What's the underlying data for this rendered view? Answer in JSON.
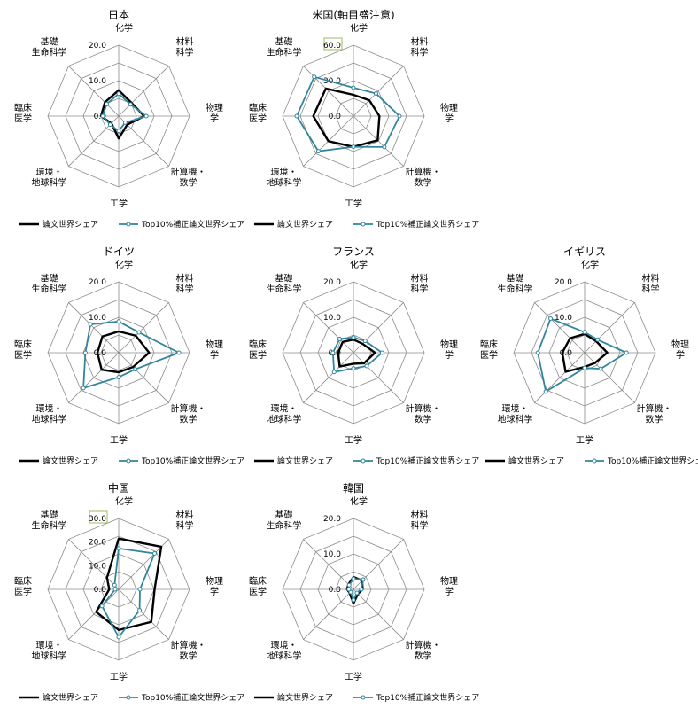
{
  "colors": {
    "share": "#000000",
    "top10": "#31859c",
    "grid": "#8c8c8c",
    "tick_box": "#9bbb59"
  },
  "legend": {
    "share_label": "論文世界シェア",
    "top10_label": "Top10%補正論文世界シェア"
  },
  "axes": [
    [
      "化学"
    ],
    [
      "材料",
      "科学"
    ],
    [
      "物理",
      "学"
    ],
    [
      "計算機・",
      "数学"
    ],
    [
      "工学"
    ],
    [
      "環境・",
      "地球科学"
    ],
    [
      "臨床",
      "医学"
    ],
    [
      "基礎",
      "生命科学"
    ]
  ],
  "chart_data": [
    {
      "type": "radar",
      "title": "日本",
      "rmax": 20,
      "ticks": [
        "20.0",
        "10.0",
        "0.0"
      ],
      "tick_values": [
        20,
        10,
        0
      ],
      "boxed_tick": "",
      "series": [
        {
          "name": "論文世界シェア",
          "values": [
            7.3,
            5.2,
            7.2,
            3.4,
            6.3,
            2.9,
            5.0,
            5.5
          ]
        },
        {
          "name": "Top10%補正論文世界シェア",
          "values": [
            6.3,
            4.7,
            7.8,
            2.6,
            4.2,
            3.4,
            4.5,
            4.8
          ]
        }
      ]
    },
    {
      "type": "radar",
      "title": "米国(軸目盛注意)",
      "rmax": 60,
      "ticks": [
        "60.0",
        "30.0",
        "0.0"
      ],
      "tick_values": [
        60,
        30,
        0
      ],
      "boxed_tick": "60.0",
      "series": [
        {
          "name": "論文世界シェア",
          "values": [
            18,
            19,
            22,
            29,
            26,
            30,
            34,
            33
          ]
        },
        {
          "name": "Top10%補正論文世界シェア",
          "values": [
            24,
            27,
            39,
            37,
            26,
            42,
            48,
            47
          ]
        }
      ]
    },
    {
      "type": "radar",
      "title": "ドイツ",
      "rmax": 20,
      "ticks": [
        "20.0",
        "10.0",
        "0.0"
      ],
      "tick_values": [
        20,
        10,
        0
      ],
      "boxed_tick": "",
      "series": [
        {
          "name": "論文世界シェア",
          "values": [
            6.0,
            6.8,
            8.6,
            5.7,
            5.5,
            6.8,
            6.0,
            6.5
          ]
        },
        {
          "name": "Top10%補正論文世界シェア",
          "values": [
            8.8,
            8.1,
            17.0,
            6.6,
            6.9,
            14.1,
            9.4,
            11.3
          ]
        }
      ]
    },
    {
      "type": "radar",
      "title": "フランス",
      "rmax": 20,
      "ticks": [
        "20.0",
        "10.0",
        "0.0"
      ],
      "tick_values": [
        20,
        10,
        0
      ],
      "boxed_tick": "",
      "series": [
        {
          "name": "論文世界シェア",
          "values": [
            3.7,
            3.6,
            6.1,
            4.2,
            3.1,
            5.5,
            4.3,
            4.3
          ]
        },
        {
          "name": "Top10%補正論文世界シェア",
          "values": [
            4.3,
            4.7,
            8.1,
            5.3,
            4.4,
            7.7,
            5.8,
            5.5
          ]
        }
      ]
    },
    {
      "type": "radar",
      "title": "イギリス",
      "rmax": 20,
      "ticks": [
        "20.0",
        "10.0",
        "0.0"
      ],
      "tick_values": [
        20,
        10,
        0
      ],
      "boxed_tick": "",
      "series": [
        {
          "name": "論文世界シェア",
          "values": [
            5.3,
            4.6,
            6.4,
            4.1,
            4.0,
            7.6,
            6.3,
            5.8
          ]
        },
        {
          "name": "Top10%補正論文世界シェア",
          "values": [
            5.8,
            5.2,
            11.8,
            6.4,
            4.3,
            15.5,
            13.2,
            13.6
          ]
        }
      ]
    },
    {
      "type": "radar",
      "title": "中国",
      "rmax": 30,
      "ticks": [
        "30.0",
        "20.0",
        "10.0",
        "0.0"
      ],
      "tick_values": [
        30,
        20,
        10,
        0
      ],
      "boxed_tick": "30.0",
      "series": [
        {
          "name": "論文世界シェア",
          "values": [
            21.5,
            25.5,
            15.2,
            19.5,
            17.2,
            13.5,
            4.0,
            7.0
          ]
        },
        {
          "name": "Top10%補正論文世界シェア",
          "values": [
            17.3,
            21.5,
            9.0,
            12.5,
            20.2,
            10.0,
            1.5,
            2.5
          ]
        }
      ]
    },
    {
      "type": "radar",
      "title": "韓国",
      "rmax": 20,
      "ticks": [
        "20.0",
        "10.0",
        "0.0"
      ],
      "tick_values": [
        20,
        10,
        0
      ],
      "boxed_tick": "",
      "series": [
        {
          "name": "論文世界シェア",
          "values": [
            3.5,
            3.5,
            2.6,
            1.8,
            4.0,
            1.5,
            1.8,
            2.0
          ]
        },
        {
          "name": "Top10%補正論文世界シェア",
          "values": [
            3.0,
            3.9,
            2.2,
            1.4,
            3.0,
            1.1,
            1.3,
            1.7
          ]
        }
      ]
    }
  ]
}
